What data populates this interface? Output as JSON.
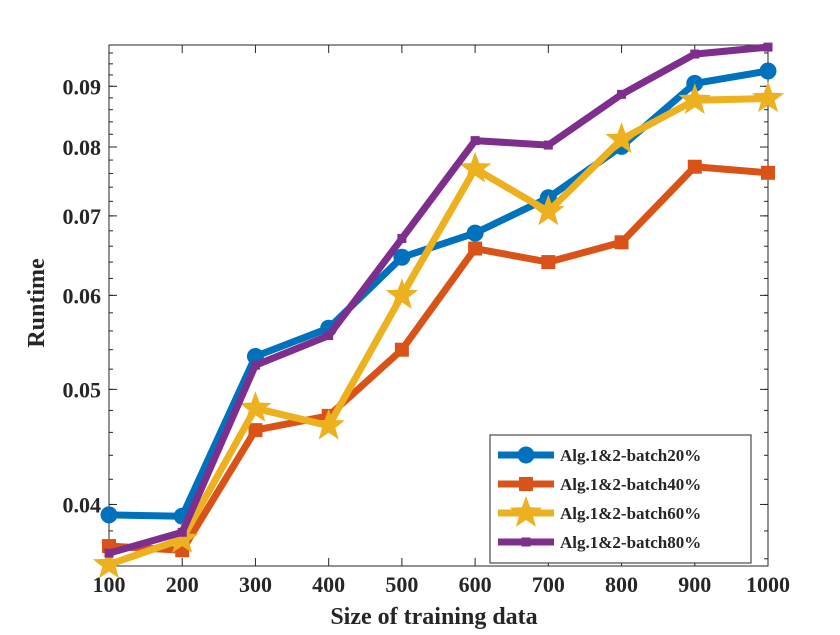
{
  "chart_data": {
    "type": "line",
    "title": "",
    "xlabel": "Size of training data",
    "ylabel": "Runtime",
    "x": [
      100,
      200,
      300,
      400,
      500,
      600,
      700,
      800,
      900,
      1000
    ],
    "xlim": [
      100,
      1000
    ],
    "ylim": [
      0.0355,
      0.0975
    ],
    "yscale": "log",
    "xticks": [
      100,
      200,
      300,
      400,
      500,
      600,
      700,
      800,
      900,
      1000
    ],
    "xtick_labels": [
      "100",
      "200",
      "300",
      "400",
      "500",
      "600",
      "700",
      "800",
      "900",
      "1000"
    ],
    "yticks": [
      0.04,
      0.05,
      0.06,
      0.07,
      0.08,
      0.09
    ],
    "ytick_labels": [
      "0.04",
      "0.05",
      "0.06",
      "0.07",
      "0.08",
      "0.09"
    ],
    "grid": false,
    "legend_position": "bottom-right",
    "series": [
      {
        "name": "Alg.1&2-batch20%",
        "color": "#0072BD",
        "marker": "circle",
        "values": [
          0.0392,
          0.0391,
          0.0533,
          0.0563,
          0.0646,
          0.0677,
          0.0725,
          0.0801,
          0.0905,
          0.0927
        ]
      },
      {
        "name": "Alg.1&2-batch40%",
        "color": "#D95319",
        "marker": "square",
        "values": [
          0.0369,
          0.0366,
          0.0462,
          0.0475,
          0.054,
          0.0657,
          0.064,
          0.0665,
          0.077,
          0.0761
        ]
      },
      {
        "name": "Alg.1&2-batch60%",
        "color": "#EDB120",
        "marker": "star",
        "values": [
          0.0356,
          0.0374,
          0.0482,
          0.0466,
          0.06,
          0.0767,
          0.0706,
          0.0812,
          0.0876,
          0.0879
        ]
      },
      {
        "name": "Alg.1&2-batch80%",
        "color": "#7E2F8E",
        "marker": "square-small",
        "values": [
          0.0364,
          0.0379,
          0.0524,
          0.0555,
          0.067,
          0.081,
          0.0803,
          0.0886,
          0.0958,
          0.0971
        ]
      }
    ]
  }
}
